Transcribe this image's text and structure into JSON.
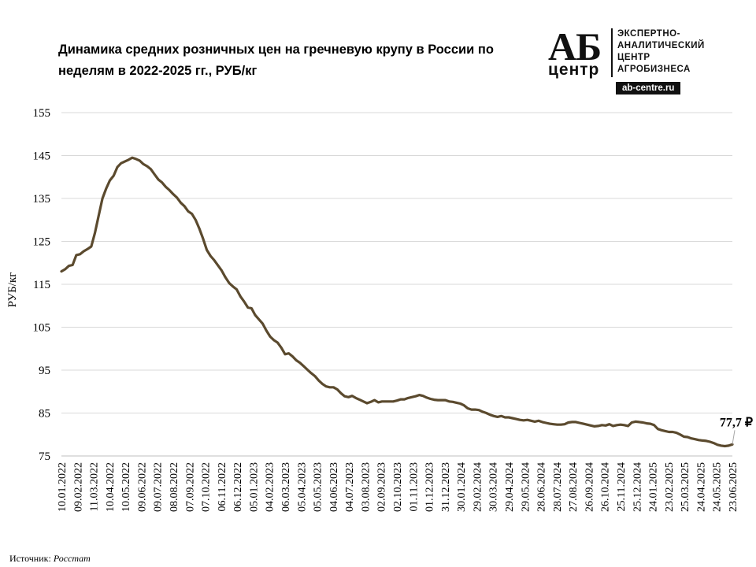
{
  "title": "Динамика средних розничных цен на гречневую крупу в России по неделям в 2022-2025 гг., РУБ/кг",
  "logo": {
    "ab": "АБ",
    "centr": "центр",
    "line1": "ЭКСПЕРТНО-",
    "line2": "АНАЛИТИЧЕСКИЙ",
    "line3": "ЦЕНТР",
    "line4": "АГРОБИЗНЕСА",
    "site": "ab-centre.ru"
  },
  "source": {
    "label": "Источник:",
    "value": "Росстат"
  },
  "colors": {
    "line": "#5b4a2e",
    "grid": "#d9d9d9",
    "axis": "#bfbfbf"
  },
  "chart_data": {
    "type": "line",
    "title": "Динамика средних розничных цен на гречневую крупу в России по неделям в 2022-2025 гг., РУБ/кг",
    "xlabel": "",
    "ylabel": "РУБ/кг",
    "ylim": [
      75,
      155
    ],
    "yticks": [
      75,
      85,
      95,
      105,
      115,
      125,
      135,
      145,
      155
    ],
    "grid": true,
    "legend": "none",
    "x_ticks": [
      "10.01.2022",
      "09.02.2022",
      "11.03.2022",
      "10.04.2022",
      "10.05.2022",
      "09.06.2022",
      "09.07.2022",
      "08.08.2022",
      "07.09.2022",
      "07.10.2022",
      "06.11.2022",
      "06.12.2022",
      "05.01.2023",
      "04.02.2023",
      "06.03.2023",
      "05.04.2023",
      "05.05.2023",
      "04.06.2023",
      "04.07.2023",
      "03.08.2023",
      "02.09.2023",
      "02.10.2023",
      "01.11.2023",
      "01.12.2023",
      "31.12.2023",
      "30.01.2024",
      "29.02.2024",
      "30.03.2024",
      "29.04.2024",
      "29.05.2024",
      "28.06.2024",
      "28.07.2024",
      "27.08.2024",
      "26.09.2024",
      "26.10.2024",
      "25.11.2024",
      "25.12.2024",
      "24.01.2025",
      "23.02.2025",
      "25.03.2025",
      "24.04.2025",
      "24.05.2025",
      "23.06.2025"
    ],
    "x_start": "10.01.2022",
    "x_end": "23.06.2025",
    "points": [
      [
        "10.01.2022",
        118.0
      ],
      [
        "17.01.2022",
        118.5
      ],
      [
        "24.01.2022",
        119.3
      ],
      [
        "31.01.2022",
        119.5
      ],
      [
        "07.02.2022",
        121.8
      ],
      [
        "14.02.2022",
        122.0
      ],
      [
        "21.02.2022",
        122.7
      ],
      [
        "28.02.2022",
        123.2
      ],
      [
        "07.03.2022",
        123.8
      ],
      [
        "14.03.2022",
        127.0
      ],
      [
        "21.03.2022",
        131.0
      ],
      [
        "28.03.2022",
        135.0
      ],
      [
        "04.04.2022",
        137.3
      ],
      [
        "11.04.2022",
        139.2
      ],
      [
        "18.04.2022",
        140.3
      ],
      [
        "25.04.2022",
        142.3
      ],
      [
        "02.05.2022",
        143.2
      ],
      [
        "09.05.2022",
        143.6
      ],
      [
        "16.05.2022",
        144.0
      ],
      [
        "23.05.2022",
        144.5
      ],
      [
        "30.05.2022",
        144.2
      ],
      [
        "06.06.2022",
        143.8
      ],
      [
        "13.06.2022",
        143.0
      ],
      [
        "20.06.2022",
        142.5
      ],
      [
        "27.06.2022",
        141.8
      ],
      [
        "04.07.2022",
        140.6
      ],
      [
        "11.07.2022",
        139.4
      ],
      [
        "18.07.2022",
        138.7
      ],
      [
        "25.07.2022",
        137.7
      ],
      [
        "01.08.2022",
        136.9
      ],
      [
        "08.08.2022",
        136.0
      ],
      [
        "15.08.2022",
        135.2
      ],
      [
        "22.08.2022",
        134.0
      ],
      [
        "29.08.2022",
        133.2
      ],
      [
        "05.09.2022",
        132.0
      ],
      [
        "12.09.2022",
        131.4
      ],
      [
        "19.09.2022",
        130.0
      ],
      [
        "26.09.2022",
        128.0
      ],
      [
        "03.10.2022",
        125.6
      ],
      [
        "10.10.2022",
        123.0
      ],
      [
        "17.10.2022",
        121.6
      ],
      [
        "24.10.2022",
        120.6
      ],
      [
        "31.10.2022",
        119.4
      ],
      [
        "07.11.2022",
        118.2
      ],
      [
        "14.11.2022",
        116.6
      ],
      [
        "21.11.2022",
        115.3
      ],
      [
        "28.11.2022",
        114.5
      ],
      [
        "05.12.2022",
        113.8
      ],
      [
        "12.12.2022",
        112.2
      ],
      [
        "19.12.2022",
        111.0
      ],
      [
        "26.12.2022",
        109.6
      ],
      [
        "02.01.2023",
        109.4
      ],
      [
        "09.01.2023",
        107.8
      ],
      [
        "16.01.2023",
        106.8
      ],
      [
        "23.01.2023",
        105.8
      ],
      [
        "30.01.2023",
        104.2
      ],
      [
        "06.02.2023",
        102.8
      ],
      [
        "13.02.2023",
        102.0
      ],
      [
        "20.02.2023",
        101.4
      ],
      [
        "27.02.2023",
        100.2
      ],
      [
        "06.03.2023",
        98.7
      ],
      [
        "13.03.2023",
        98.9
      ],
      [
        "20.03.2023",
        98.2
      ],
      [
        "27.03.2023",
        97.3
      ],
      [
        "03.04.2023",
        96.7
      ],
      [
        "10.04.2023",
        95.9
      ],
      [
        "17.04.2023",
        95.1
      ],
      [
        "24.04.2023",
        94.3
      ],
      [
        "01.05.2023",
        93.6
      ],
      [
        "08.05.2023",
        92.6
      ],
      [
        "15.05.2023",
        91.8
      ],
      [
        "22.05.2023",
        91.2
      ],
      [
        "29.05.2023",
        91.0
      ],
      [
        "05.06.2023",
        91.0
      ],
      [
        "12.06.2023",
        90.5
      ],
      [
        "19.06.2023",
        89.6
      ],
      [
        "26.06.2023",
        88.9
      ],
      [
        "03.07.2023",
        88.7
      ],
      [
        "10.07.2023",
        89.0
      ],
      [
        "17.07.2023",
        88.5
      ],
      [
        "24.07.2023",
        88.1
      ],
      [
        "31.07.2023",
        87.7
      ],
      [
        "07.08.2023",
        87.3
      ],
      [
        "14.08.2023",
        87.6
      ],
      [
        "21.08.2023",
        88.0
      ],
      [
        "28.08.2023",
        87.5
      ],
      [
        "04.09.2023",
        87.7
      ],
      [
        "11.09.2023",
        87.7
      ],
      [
        "18.09.2023",
        87.7
      ],
      [
        "25.09.2023",
        87.7
      ],
      [
        "02.10.2023",
        87.9
      ],
      [
        "09.10.2023",
        88.2
      ],
      [
        "16.10.2023",
        88.2
      ],
      [
        "23.10.2023",
        88.5
      ],
      [
        "30.10.2023",
        88.7
      ],
      [
        "06.11.2023",
        88.9
      ],
      [
        "13.11.2023",
        89.2
      ],
      [
        "20.11.2023",
        89.0
      ],
      [
        "27.11.2023",
        88.6
      ],
      [
        "04.12.2023",
        88.3
      ],
      [
        "11.12.2023",
        88.1
      ],
      [
        "18.12.2023",
        88.0
      ],
      [
        "25.12.2023",
        88.0
      ],
      [
        "01.01.2024",
        88.0
      ],
      [
        "08.01.2024",
        87.7
      ],
      [
        "15.01.2024",
        87.6
      ],
      [
        "22.01.2024",
        87.4
      ],
      [
        "29.01.2024",
        87.2
      ],
      [
        "05.02.2024",
        86.8
      ],
      [
        "12.02.2024",
        86.1
      ],
      [
        "19.02.2024",
        85.8
      ],
      [
        "26.02.2024",
        85.8
      ],
      [
        "04.03.2024",
        85.7
      ],
      [
        "11.03.2024",
        85.3
      ],
      [
        "18.03.2024",
        85.0
      ],
      [
        "25.03.2024",
        84.6
      ],
      [
        "01.04.2024",
        84.3
      ],
      [
        "08.04.2024",
        84.1
      ],
      [
        "15.04.2024",
        84.3
      ],
      [
        "22.04.2024",
        84.0
      ],
      [
        "29.04.2024",
        84.0
      ],
      [
        "06.05.2024",
        83.8
      ],
      [
        "13.05.2024",
        83.6
      ],
      [
        "20.05.2024",
        83.4
      ],
      [
        "27.05.2024",
        83.3
      ],
      [
        "03.06.2024",
        83.4
      ],
      [
        "10.06.2024",
        83.2
      ],
      [
        "17.06.2024",
        83.0
      ],
      [
        "24.06.2024",
        83.2
      ],
      [
        "01.07.2024",
        82.9
      ],
      [
        "08.07.2024",
        82.7
      ],
      [
        "15.07.2024",
        82.5
      ],
      [
        "22.07.2024",
        82.4
      ],
      [
        "29.07.2024",
        82.3
      ],
      [
        "05.08.2024",
        82.3
      ],
      [
        "12.08.2024",
        82.4
      ],
      [
        "19.08.2024",
        82.8
      ],
      [
        "26.08.2024",
        82.9
      ],
      [
        "02.09.2024",
        82.9
      ],
      [
        "09.09.2024",
        82.7
      ],
      [
        "16.09.2024",
        82.5
      ],
      [
        "23.09.2024",
        82.3
      ],
      [
        "30.09.2024",
        82.1
      ],
      [
        "07.10.2024",
        81.9
      ],
      [
        "14.10.2024",
        82.0
      ],
      [
        "21.10.2024",
        82.2
      ],
      [
        "28.10.2024",
        82.1
      ],
      [
        "04.11.2024",
        82.4
      ],
      [
        "11.11.2024",
        82.0
      ],
      [
        "18.11.2024",
        82.2
      ],
      [
        "25.11.2024",
        82.3
      ],
      [
        "02.12.2024",
        82.2
      ],
      [
        "09.12.2024",
        82.0
      ],
      [
        "16.12.2024",
        82.8
      ],
      [
        "23.12.2024",
        83.0
      ],
      [
        "30.12.2024",
        82.9
      ],
      [
        "06.01.2025",
        82.8
      ],
      [
        "13.01.2025",
        82.6
      ],
      [
        "20.01.2025",
        82.5
      ],
      [
        "27.01.2025",
        82.2
      ],
      [
        "03.02.2025",
        81.3
      ],
      [
        "10.02.2025",
        81.0
      ],
      [
        "17.02.2025",
        80.8
      ],
      [
        "24.02.2025",
        80.6
      ],
      [
        "03.03.2025",
        80.6
      ],
      [
        "10.03.2025",
        80.4
      ],
      [
        "17.03.2025",
        80.0
      ],
      [
        "24.03.2025",
        79.5
      ],
      [
        "31.03.2025",
        79.4
      ],
      [
        "07.04.2025",
        79.1
      ],
      [
        "14.04.2025",
        78.9
      ],
      [
        "21.04.2025",
        78.7
      ],
      [
        "28.04.2025",
        78.6
      ],
      [
        "05.05.2025",
        78.5
      ],
      [
        "12.05.2025",
        78.3
      ],
      [
        "19.05.2025",
        78.0
      ],
      [
        "26.05.2025",
        77.6
      ],
      [
        "02.06.2025",
        77.4
      ],
      [
        "09.06.2025",
        77.3
      ],
      [
        "16.06.2025",
        77.4
      ],
      [
        "23.06.2025",
        77.7
      ]
    ],
    "annotations": [
      {
        "text": "77,7 ₽",
        "x": "23.06.2025",
        "y": 77.7
      }
    ]
  }
}
